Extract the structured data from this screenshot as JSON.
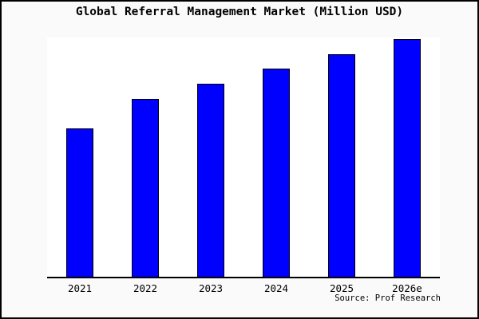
{
  "window": {
    "background": "#fafafa",
    "frame_border_color": "#000000",
    "plot_background": "#ffffff"
  },
  "chart_data": {
    "type": "bar",
    "title": "Global Referral Management Market (Million USD)",
    "categories": [
      "2021",
      "2022",
      "2023",
      "2024",
      "2025",
      "2026e"
    ],
    "values": [
      62,
      74.3,
      80.7,
      87,
      93,
      99.3
    ],
    "values_note": "y-axis shows no scale, ticks or gridlines in the image; values are estimated bar heights as percent of plot-area height (2026e tallest)",
    "xlabel": "",
    "ylabel": "",
    "ylim": [
      0,
      100
    ],
    "grid": false,
    "legend": null,
    "bar_color": "#0000ff",
    "bar_border_color": "#000000",
    "axis_color": "#000000",
    "source": "Source: Prof Research"
  }
}
